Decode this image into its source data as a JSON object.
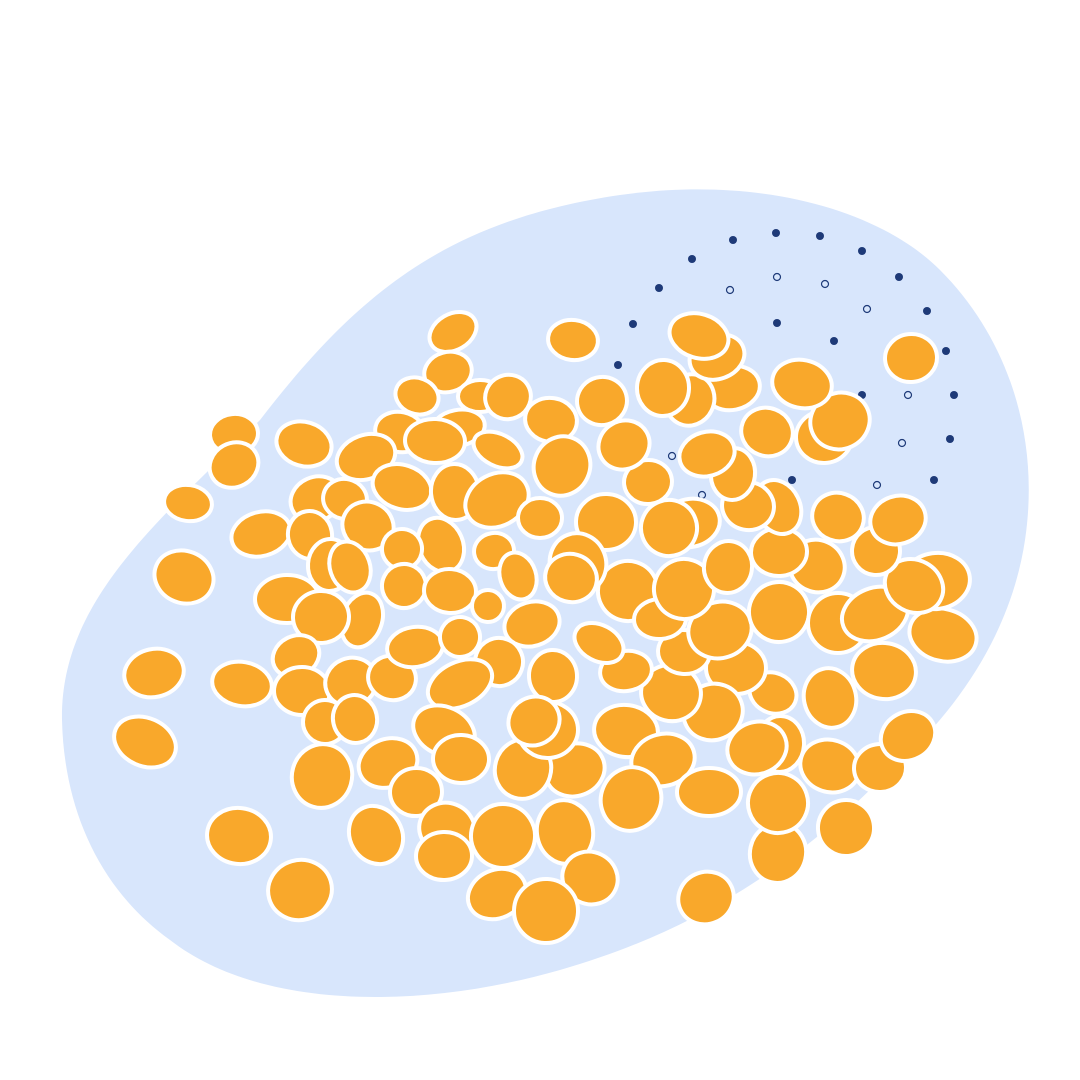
{
  "illustration": {
    "background_color": "#ffffff",
    "blob_color": "#d8e6fc",
    "ellipse_fill": "#f9a82b",
    "ellipse_stroke": "#ffffff",
    "dot_color": "#1e3a78"
  }
}
